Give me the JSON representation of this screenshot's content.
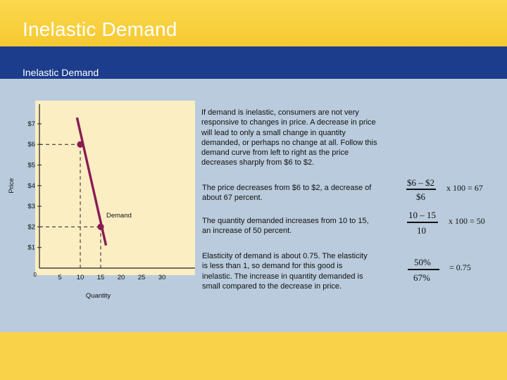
{
  "slide": {
    "title": "Inelastic Demand"
  },
  "header": {
    "section_title": "Inelastic Demand"
  },
  "colors": {
    "plot_bg": "#fbeec3",
    "demand_line": "#8a1b54",
    "point": "#8a1b54",
    "blue_bar": "#1c3d8c",
    "panel": "#b9cbdc"
  },
  "text": {
    "paragraph_1": "If demand is inelastic, consumers are not very responsive to changes in price. A decrease in price will lead to only a small change in quantity demanded, or perhaps no change at all. Follow this demand curve from left to right as the price decreases sharply from $6 to $2.",
    "paragraph_2": "The price decreases from $6 to $2, a decrease of about 67 percent.",
    "paragraph_3": "The quantity demanded increases from 10 to 15,  an increase of 50 percent.",
    "paragraph_4": "Elasticity of demand is about 0.75. The elasticity is less than 1, so demand for this good is inelastic. The increase in quantity demanded is small compared to the decrease in price."
  },
  "formulas": {
    "price": {
      "numerator": "$6 – $2",
      "denominator": "$6",
      "result": "x  100 = 67"
    },
    "quantity": {
      "numerator": "10 – 15",
      "denominator": "10",
      "result": "x 100 = 50"
    },
    "elasticity": {
      "numerator": "50%",
      "denominator": "67%",
      "result": "= 0.75"
    }
  },
  "chart_data": {
    "type": "line",
    "title": "",
    "xlabel": "Quantity",
    "ylabel": "Price",
    "x_ticks": [
      "5",
      "10",
      "15",
      "20",
      "25",
      "30"
    ],
    "y_ticks": [
      "$1",
      "$2",
      "$3",
      "$4",
      "$5",
      "$6",
      "$7"
    ],
    "origin_label": "0",
    "xlim": [
      0,
      33
    ],
    "ylim": [
      0,
      7.8
    ],
    "grid": false,
    "series": [
      {
        "name": "Demand",
        "points": [
          [
            9.2,
            7.3
          ],
          [
            16.3,
            1.1
          ]
        ]
      }
    ],
    "highlighted_points": [
      [
        10,
        6
      ],
      [
        15,
        2
      ]
    ],
    "line_label": "Demand"
  }
}
